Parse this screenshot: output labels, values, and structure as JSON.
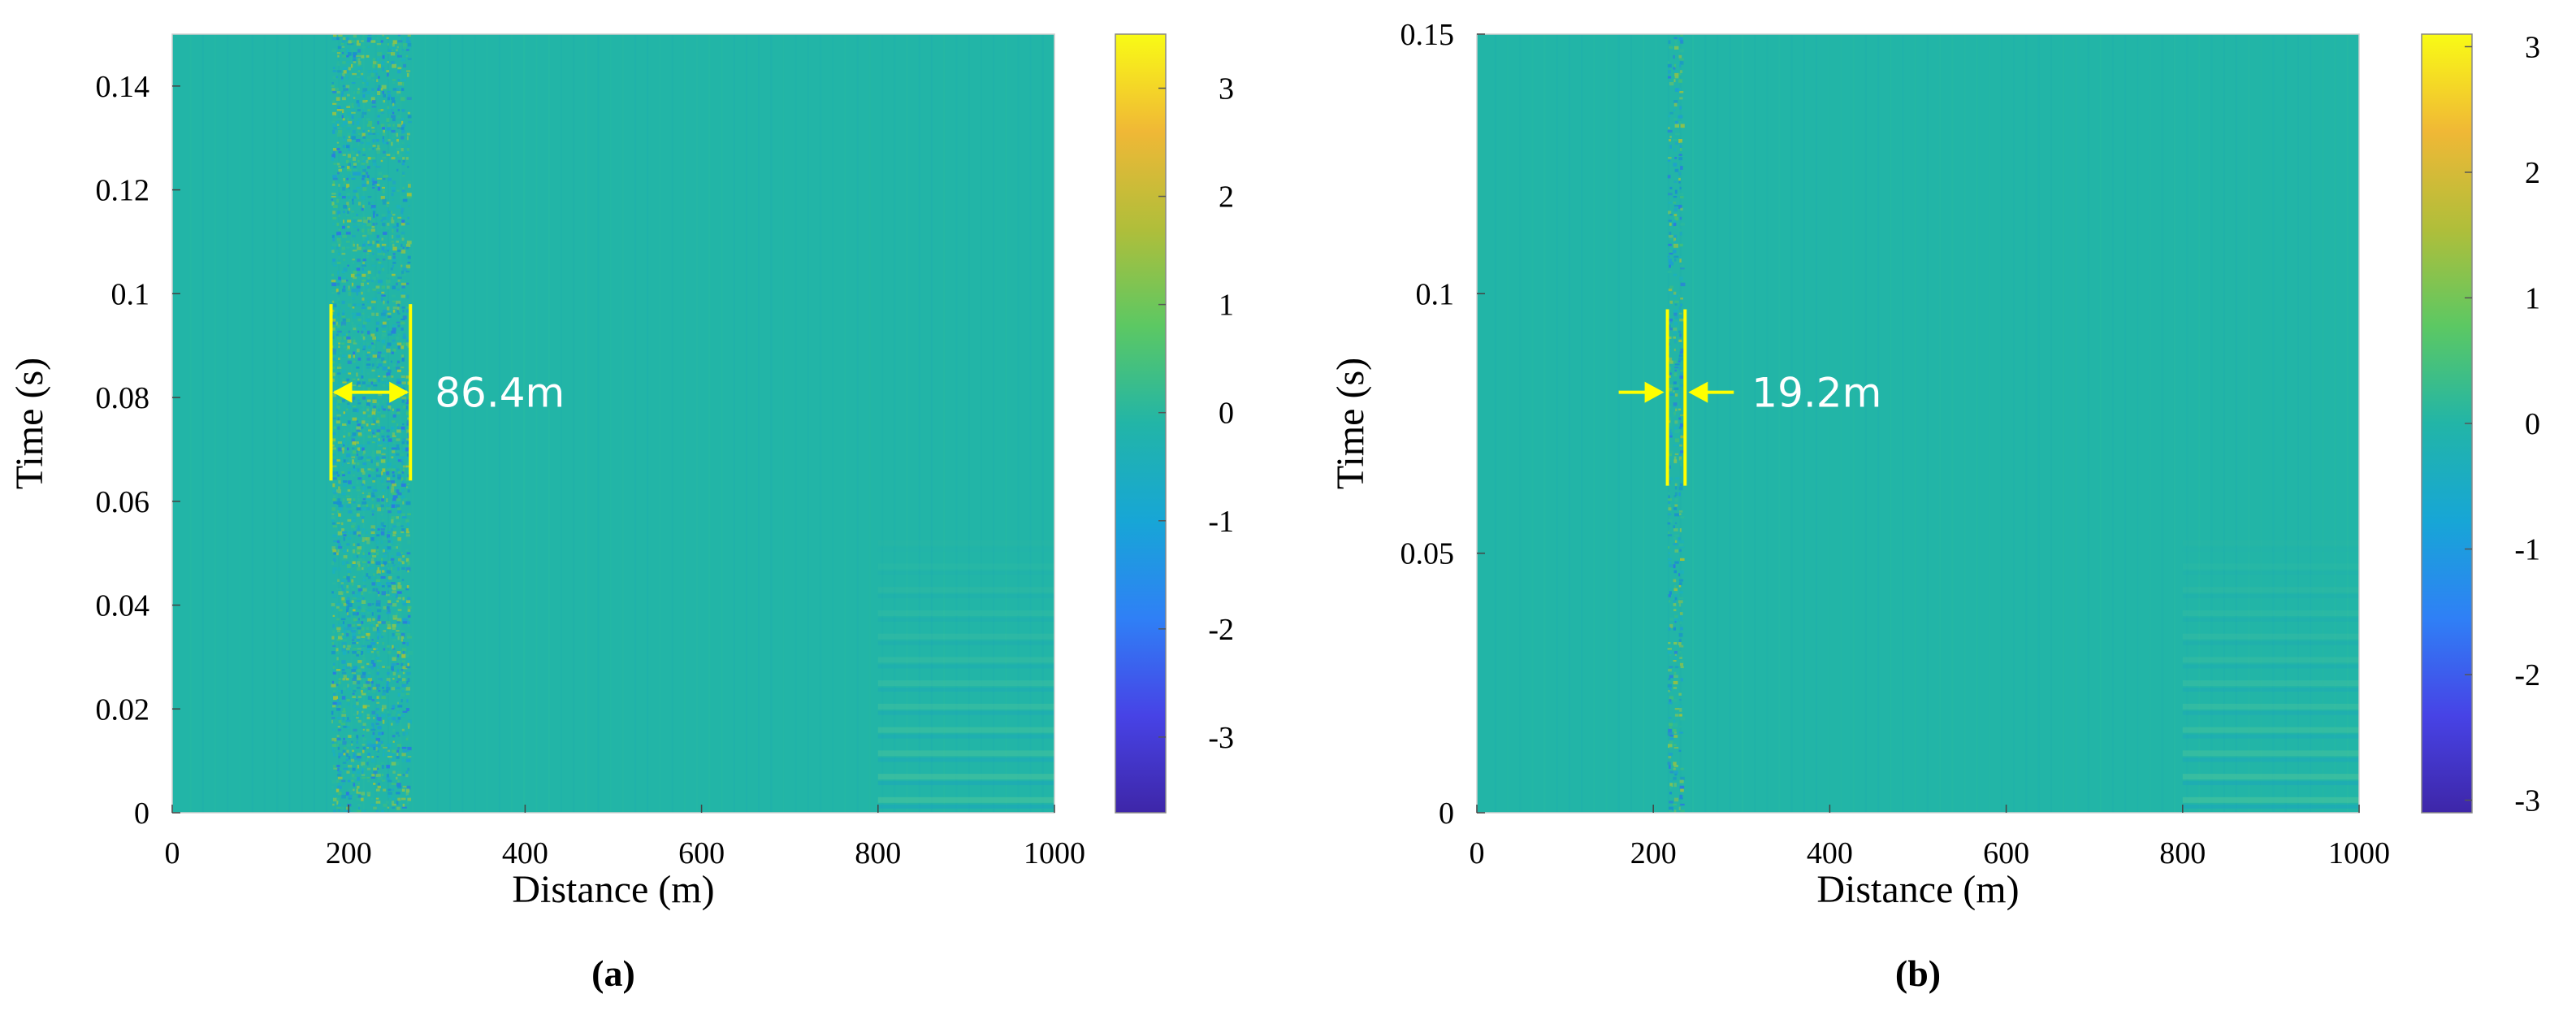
{
  "chart_data": [
    {
      "type": "heatmap",
      "panel_label": "(a)",
      "xlabel": "Distance (m)",
      "ylabel": "Time (s)",
      "xlim": [
        0,
        1000
      ],
      "ylim": [
        0,
        0.15
      ],
      "x_ticks": [
        0,
        200,
        400,
        600,
        800,
        1000
      ],
      "x_tick_labels": [
        "0",
        "200",
        "400",
        "600",
        "800",
        "1000"
      ],
      "y_ticks": [
        0,
        0.02,
        0.04,
        0.06,
        0.08,
        0.1,
        0.12,
        0.14
      ],
      "y_tick_labels": [
        "0",
        "0.02",
        "0.04",
        "0.06",
        "0.08",
        "0.1",
        "0.12",
        "0.14"
      ],
      "colorbar": {
        "range": [
          -3.7,
          3.5
        ],
        "ticks": [
          -3,
          -2,
          -1,
          0,
          1,
          2,
          3
        ],
        "tick_labels": [
          "-3",
          "-2",
          "-1",
          "0",
          "1",
          "2",
          "3"
        ]
      },
      "disturbance_band": [
        180,
        270
      ],
      "annotation": {
        "text": "86.4m",
        "x_left": 180,
        "x_right": 270,
        "y_center": 0.081,
        "y_extent": [
          0.064,
          0.098
        ],
        "arrow_style": "inward-bar",
        "color": "#ffff00"
      }
    },
    {
      "type": "heatmap",
      "panel_label": "(b)",
      "xlabel": "Distance (m)",
      "ylabel": "Time (s)",
      "xlim": [
        0,
        1000
      ],
      "ylim": [
        0,
        0.15
      ],
      "x_ticks": [
        0,
        200,
        400,
        600,
        800,
        1000
      ],
      "x_tick_labels": [
        "0",
        "200",
        "400",
        "600",
        "800",
        "1000"
      ],
      "y_ticks": [
        0,
        0.05,
        0.1,
        0.15
      ],
      "y_tick_labels": [
        "0",
        "0.05",
        "0.1",
        "0.15"
      ],
      "colorbar": {
        "range": [
          -3.1,
          3.1
        ],
        "ticks": [
          -3,
          -2,
          -1,
          0,
          1,
          2,
          3
        ],
        "tick_labels": [
          "-3",
          "-2",
          "-1",
          "0",
          "1",
          "2",
          "3"
        ]
      },
      "disturbance_band": [
        216,
        234
      ],
      "annotation": {
        "text": "19.2m",
        "x_left": 216,
        "x_right": 236,
        "y_center": 0.081,
        "y_extent": [
          0.063,
          0.097
        ],
        "arrow_style": "outward-pointing-in",
        "color": "#ffff00"
      }
    }
  ],
  "colors": {
    "background": "#22b5a7",
    "annotation": "#ffff00",
    "colormap": [
      "#3e26a8",
      "#4743e6",
      "#2f80f6",
      "#17a6d6",
      "#22b5a7",
      "#5cc863",
      "#b0be3a",
      "#f0b836",
      "#f9fb15"
    ]
  }
}
